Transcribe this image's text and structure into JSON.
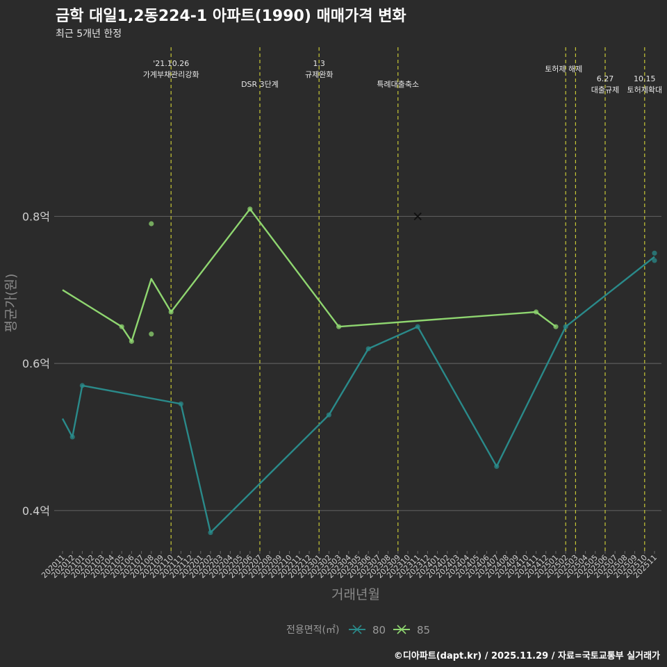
{
  "chart_data": {
    "type": "line",
    "title": "금학 대일1,2동224-1 아파트(1990) 매매가격 변화",
    "subtitle": "최근 5개년 한정",
    "xlabel": "거래년월",
    "ylabel": "평균가(원)",
    "caption": "©디아파트(dapt.kr) / 2025.11.29 / 자료=국토교통부 실거래가",
    "legend_title": "전용면적(㎡)",
    "legend_position": "bottom",
    "ylim": [
      0.345,
      1.03
    ],
    "yticks": [
      {
        "value": 0.4,
        "label": "0.4억"
      },
      {
        "value": 0.6,
        "label": "0.6억"
      },
      {
        "value": 0.8,
        "label": "0.8억"
      }
    ],
    "categories": [
      "202011",
      "202012",
      "202101",
      "202102",
      "202103",
      "202104",
      "202105",
      "202106",
      "202107",
      "202108",
      "202109",
      "202110",
      "202111",
      "202112",
      "202201",
      "202202",
      "202203",
      "202204",
      "202205",
      "202206",
      "202207",
      "202208",
      "202209",
      "202210",
      "202211",
      "202212",
      "202301",
      "202302",
      "202303",
      "202304",
      "202305",
      "202306",
      "202307",
      "202308",
      "202309",
      "202310",
      "202311",
      "202312",
      "202401",
      "202402",
      "202403",
      "202404",
      "202405",
      "202406",
      "202407",
      "202408",
      "202409",
      "202410",
      "202411",
      "202412",
      "202501",
      "202502",
      "202503",
      "202504",
      "202505",
      "202506",
      "202507",
      "202508",
      "202509",
      "202510",
      "202511"
    ],
    "events": [
      {
        "x": "202110",
        "lines": [
          "'21.10.26",
          "가계부채관리강화"
        ],
        "level": 0
      },
      {
        "x": "202207",
        "lines": [
          "DSR 3단계"
        ],
        "level": 2
      },
      {
        "x": "202301",
        "lines": [
          "1.3",
          "규제완화"
        ],
        "level": 0
      },
      {
        "x": "202309",
        "lines": [
          "특례대출축소"
        ],
        "level": 2
      },
      {
        "x": "202502",
        "lines": [
          "토허제 해제"
        ],
        "level": 1,
        "anchor": "start"
      },
      {
        "x": "202503",
        "lines": [],
        "level": 1
      },
      {
        "x": "202506",
        "lines": [
          "6.27",
          "대출규제"
        ],
        "level": 3
      },
      {
        "x": "202510",
        "lines": [
          "10.15",
          "토허제확대"
        ],
        "level": 3
      }
    ],
    "series": [
      {
        "name": "80",
        "color": "#2a8a8a",
        "line": [
          [
            "202011",
            0.525
          ],
          [
            "202012",
            0.5
          ],
          [
            "202101",
            0.57
          ],
          [
            "202111",
            0.545
          ],
          [
            "202202",
            0.37
          ],
          [
            "202302",
            0.53
          ],
          [
            "202306",
            0.62
          ],
          [
            "202311",
            0.65
          ],
          [
            "202407",
            0.46
          ],
          [
            "202502",
            0.65
          ],
          [
            "202511",
            0.745
          ]
        ],
        "points": [
          [
            "202012",
            0.5
          ],
          [
            "202101",
            0.57
          ],
          [
            "202111",
            0.545
          ],
          [
            "202202",
            0.37
          ],
          [
            "202302",
            0.53
          ],
          [
            "202306",
            0.62
          ],
          [
            "202311",
            0.65
          ],
          [
            "202407",
            0.46
          ],
          [
            "202502",
            0.65
          ],
          [
            "202511",
            0.75
          ],
          [
            "202511",
            0.74
          ]
        ],
        "marker": [
          [
            "202311",
            0.8
          ]
        ]
      },
      {
        "name": "85",
        "color": "#8fd670",
        "line": [
          [
            "202011",
            0.7
          ],
          [
            "202105",
            0.65
          ],
          [
            "202106",
            0.63
          ],
          [
            "202108",
            0.715
          ],
          [
            "202110",
            0.67
          ],
          [
            "202206",
            0.81
          ],
          [
            "202303",
            0.65
          ],
          [
            "202411",
            0.67
          ],
          [
            "202501",
            0.65
          ]
        ],
        "points": [
          [
            "202105",
            0.65
          ],
          [
            "202106",
            0.63
          ],
          [
            "202108",
            0.79
          ],
          [
            "202108",
            0.64
          ],
          [
            "202110",
            0.67
          ],
          [
            "202206",
            0.81
          ],
          [
            "202303",
            0.65
          ],
          [
            "202411",
            0.67
          ],
          [
            "202501",
            0.65
          ]
        ],
        "marker": []
      }
    ]
  }
}
